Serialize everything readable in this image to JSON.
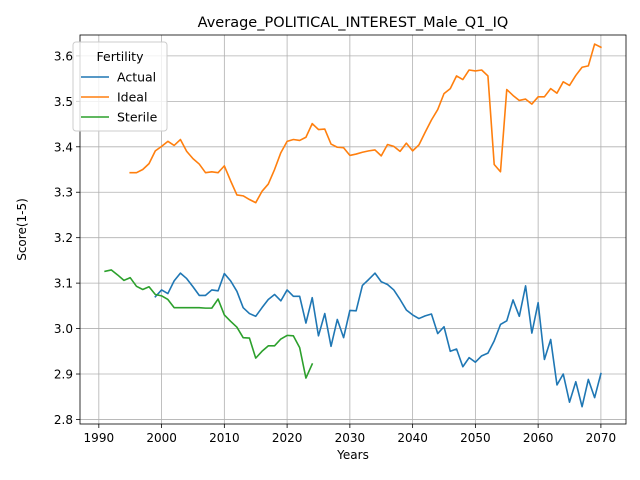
{
  "chart_data": {
    "type": "line",
    "title": "Average_POLITICAL_INTEREST_Male_Q1_IQ",
    "xlabel": "Years",
    "ylabel": "Score(1-5)",
    "xlim": [
      1987,
      2074
    ],
    "ylim": [
      2.79,
      3.646
    ],
    "xticks": [
      1990,
      2000,
      2010,
      2020,
      2030,
      2040,
      2050,
      2060,
      2070
    ],
    "xtick_labels": [
      "1990",
      "2000",
      "2010",
      "2020",
      "2030",
      "2040",
      "2050",
      "2060",
      "2070"
    ],
    "yticks": [
      2.8,
      2.9,
      3.0,
      3.1,
      3.2,
      3.3,
      3.4,
      3.5,
      3.6
    ],
    "ytick_labels": [
      "2.8",
      "2.9",
      "3.0",
      "3.1",
      "3.2",
      "3.3",
      "3.4",
      "3.5",
      "3.6"
    ],
    "grid": true,
    "legend": {
      "title": "Fertility",
      "placement": "upper-left"
    },
    "series": [
      {
        "name": "Actual",
        "color": "#1f77b4",
        "x": [
          1999,
          2000,
          2001,
          2002,
          2003,
          2004,
          2005,
          2006,
          2007,
          2008,
          2009,
          2010,
          2011,
          2012,
          2013,
          2014,
          2015,
          2016,
          2017,
          2018,
          2019,
          2020,
          2021,
          2022,
          2023,
          2024,
          2025,
          2026,
          2027,
          2028,
          2029,
          2030,
          2031,
          2032,
          2033,
          2034,
          2035,
          2036,
          2037,
          2038,
          2039,
          2040,
          2041,
          2042,
          2043,
          2044,
          2045,
          2046,
          2047,
          2048,
          2049,
          2050,
          2051,
          2052,
          2053,
          2054,
          2055,
          2056,
          2057,
          2058,
          2059,
          2060,
          2061,
          2062,
          2063,
          2064,
          2065,
          2066,
          2067,
          2068,
          2069,
          2070
        ],
        "values": [
          3.07,
          3.085,
          3.077,
          3.105,
          3.122,
          3.11,
          3.092,
          3.073,
          3.073,
          3.085,
          3.083,
          3.121,
          3.105,
          3.082,
          3.046,
          3.033,
          3.027,
          3.046,
          3.064,
          3.075,
          3.061,
          3.085,
          3.071,
          3.071,
          3.012,
          3.068,
          2.984,
          3.033,
          2.961,
          3.02,
          2.98,
          3.04,
          3.039,
          3.095,
          3.108,
          3.122,
          3.103,
          3.097,
          3.085,
          3.064,
          3.041,
          3.03,
          3.022,
          3.028,
          3.032,
          2.989,
          3.004,
          2.95,
          2.955,
          2.916,
          2.936,
          2.926,
          2.94,
          2.946,
          2.973,
          3.009,
          3.017,
          3.063,
          3.027,
          3.094,
          2.99,
          3.057,
          2.932,
          2.976,
          2.876,
          2.9,
          2.838,
          2.883,
          2.828,
          2.888,
          2.848,
          2.901
        ]
      },
      {
        "name": "Ideal",
        "color": "#ff7f0e",
        "x": [
          1995,
          1996,
          1997,
          1998,
          1999,
          2000,
          2001,
          2002,
          2003,
          2004,
          2005,
          2006,
          2007,
          2008,
          2009,
          2010,
          2011,
          2012,
          2013,
          2014,
          2015,
          2016,
          2017,
          2018,
          2019,
          2020,
          2021,
          2022,
          2023,
          2024,
          2025,
          2026,
          2027,
          2028,
          2029,
          2030,
          2031,
          2032,
          2033,
          2034,
          2035,
          2036,
          2037,
          2038,
          2039,
          2040,
          2041,
          2042,
          2043,
          2044,
          2045,
          2046,
          2047,
          2048,
          2049,
          2050,
          2051,
          2052,
          2053,
          2054,
          2055,
          2056,
          2057,
          2058,
          2059,
          2060,
          2061,
          2062,
          2063,
          2064,
          2065,
          2066,
          2067,
          2068,
          2069,
          2070
        ],
        "values": [
          3.343,
          3.343,
          3.35,
          3.363,
          3.391,
          3.401,
          3.412,
          3.403,
          3.416,
          3.39,
          3.374,
          3.362,
          3.343,
          3.345,
          3.343,
          3.358,
          3.325,
          3.294,
          3.292,
          3.284,
          3.277,
          3.302,
          3.318,
          3.35,
          3.387,
          3.412,
          3.416,
          3.414,
          3.421,
          3.451,
          3.438,
          3.439,
          3.406,
          3.399,
          3.398,
          3.381,
          3.384,
          3.388,
          3.391,
          3.393,
          3.38,
          3.405,
          3.401,
          3.39,
          3.408,
          3.391,
          3.404,
          3.432,
          3.459,
          3.482,
          3.517,
          3.528,
          3.556,
          3.548,
          3.569,
          3.567,
          3.569,
          3.556,
          3.361,
          3.345,
          3.526,
          3.513,
          3.502,
          3.505,
          3.494,
          3.51,
          3.51,
          3.528,
          3.518,
          3.543,
          3.535,
          3.557,
          3.575,
          3.578,
          3.626,
          3.619
        ]
      },
      {
        "name": "Sterile",
        "color": "#2ca02c",
        "x": [
          1991,
          1992,
          1993,
          1994,
          1995,
          1996,
          1997,
          1998,
          1999,
          2000,
          2001,
          2002,
          2003,
          2004,
          2005,
          2006,
          2007,
          2008,
          2009,
          2010,
          2011,
          2012,
          2013,
          2014,
          2015,
          2016,
          2017,
          2018,
          2019,
          2020,
          2021,
          2022,
          2023,
          2024
        ],
        "values": [
          3.126,
          3.129,
          3.118,
          3.106,
          3.112,
          3.093,
          3.086,
          3.092,
          3.075,
          3.072,
          3.064,
          3.046,
          3.046,
          3.046,
          3.046,
          3.046,
          3.045,
          3.045,
          3.065,
          3.03,
          3.016,
          3.003,
          2.98,
          2.979,
          2.935,
          2.95,
          2.962,
          2.962,
          2.977,
          2.985,
          2.984,
          2.958,
          2.891,
          2.922
        ]
      }
    ]
  }
}
